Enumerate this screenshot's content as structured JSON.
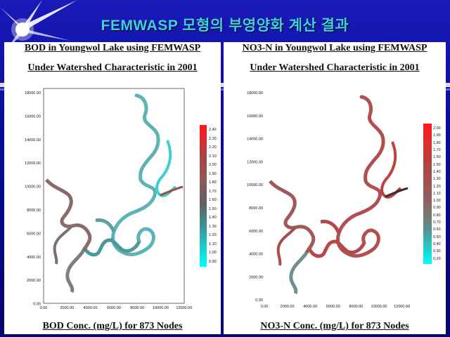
{
  "title": "FEMWASP 모형의 부영양화 계산 결과",
  "left": {
    "title1": "BOD in Youngwol Lake using FEMWASP",
    "title2": "Under Watershed Characteristic in 2001",
    "caption": "BOD Conc. (mg/L) for 873 Nodes",
    "yticks": [
      "18000.00",
      "16000.00",
      "14000.00",
      "12000.00",
      "10000.00",
      "8000.00",
      "6000.00",
      "4000.00",
      "2000.00",
      "0.00"
    ],
    "xticks": [
      "0.00",
      "2000.00",
      "4000.00",
      "6000.00",
      "8000.00",
      "10000.00",
      "12000.00"
    ],
    "legend": [
      "2.40",
      "2.30",
      "2.20",
      "2.10",
      "2.00",
      "1.90",
      "1.80",
      "1.70",
      "1.60",
      "1.50",
      "1.40",
      "1.30",
      "1.20",
      "1.10",
      "1.00",
      "0.90"
    ]
  },
  "right": {
    "title1": "NO3-N in Youngwol Lake using FEMWASP",
    "title2": "Under Watershed Characteristic in 2001",
    "caption": "NO3-N Conc. (mg/L) for 873 Nodes",
    "yticks": [
      "18000.00",
      "16000.00",
      "14000.00",
      "12000.00",
      "10000.00",
      "8000.00",
      "6000.00",
      "4000.00",
      "2000.00",
      "0.00"
    ],
    "xticks": [
      "0.00",
      "2000.00",
      "4000.00",
      "6000.00",
      "8000.00",
      "10000.00",
      "12000.00"
    ],
    "legend": [
      "2.00",
      "1.90",
      "1.80",
      "1.70",
      "1.60",
      "1.50",
      "1.40",
      "1.30",
      "1.20",
      "1.10",
      "1.00",
      "0.90",
      "0.80",
      "0.70",
      "0.60",
      "0.50",
      "0.40",
      "0.30",
      "0.20"
    ]
  },
  "colors": {
    "title": "#3fd0e6",
    "background": "#0a0a8c",
    "bod_high": "#ff1a1a",
    "bod_low": "#00ffff",
    "no3_high": "#ff1a1a",
    "no3_low": "#00ffff"
  }
}
